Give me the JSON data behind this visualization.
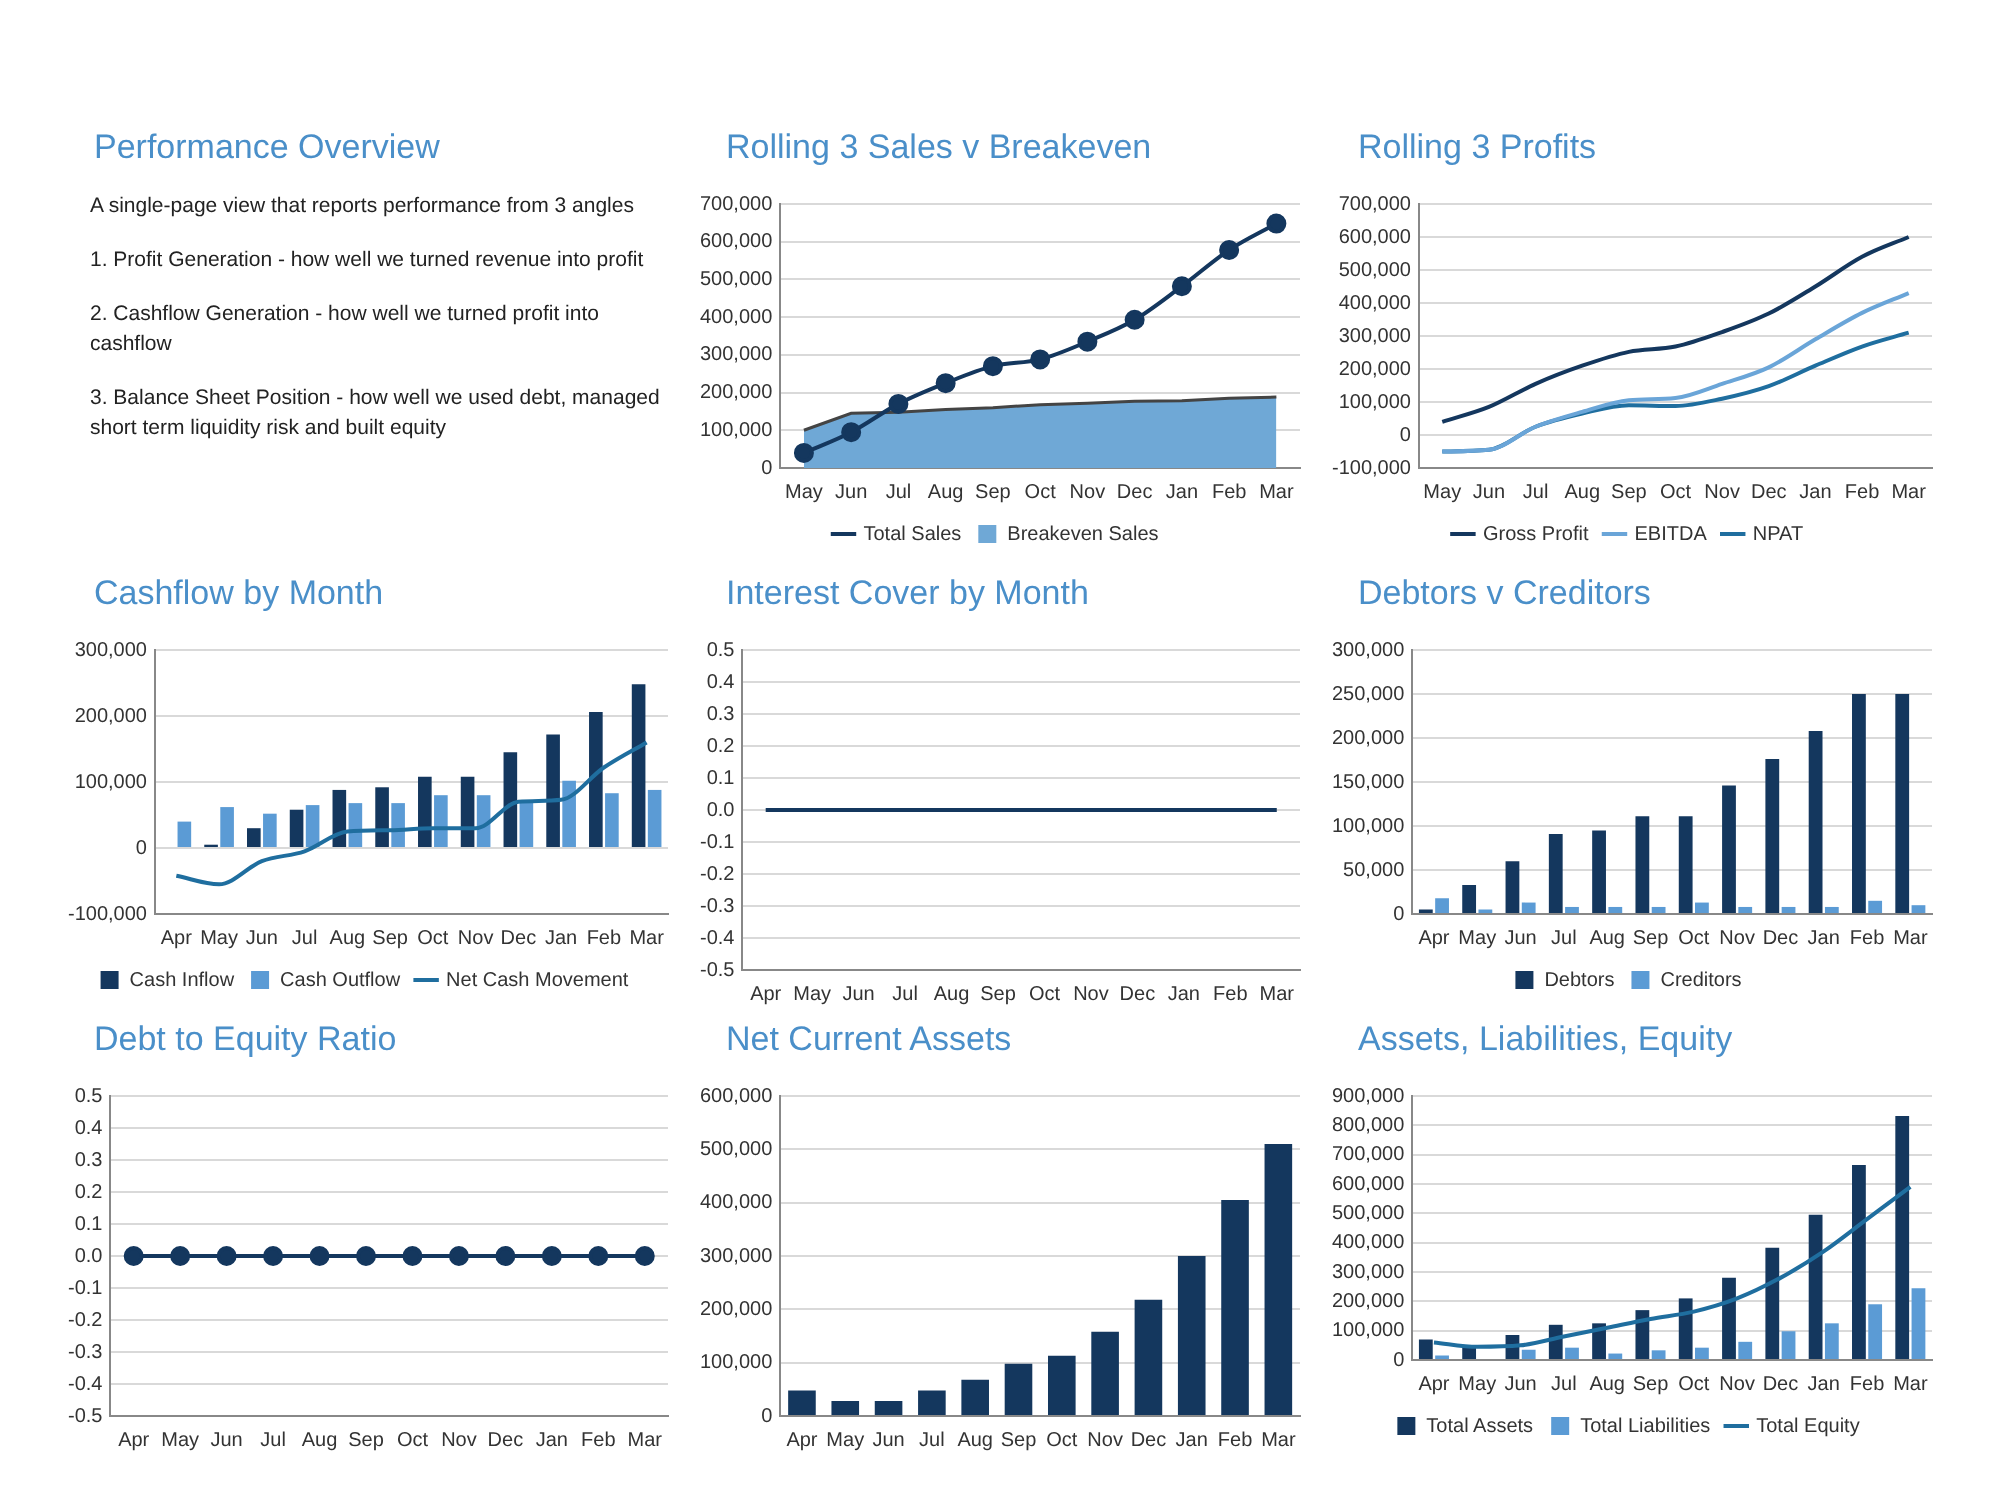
{
  "chart_data": [
    {
      "type": "other",
      "title": "Performance Overview",
      "annotations": [
        "A single-page view that reports performance from 3 angles",
        "1. Profit Generation - how well we turned revenue into profit",
        "2. Cashflow Generation - how well we turned profit into cashflow",
        "3. Balance Sheet Position - how well we used debt, managed short term liquidity risk and built equity"
      ]
    },
    {
      "type": "line",
      "title": "Rolling 3 Sales v Breakeven",
      "categories": [
        "May",
        "Jun",
        "Jul",
        "Aug",
        "Sep",
        "Oct",
        "Nov",
        "Dec",
        "Jan",
        "Feb",
        "Mar"
      ],
      "series": [
        {
          "name": "Total Sales",
          "type": "line",
          "color": "#14375e",
          "marker": "circle",
          "values": [
            40000,
            95000,
            170000,
            225000,
            270000,
            288000,
            335000,
            393000,
            482000,
            578000,
            648000
          ]
        },
        {
          "name": "Breakeven Sales",
          "type": "area",
          "color": "#6fa8d6",
          "values": [
            100000,
            145000,
            148000,
            155000,
            160000,
            168000,
            172000,
            177000,
            178000,
            185000,
            188000
          ]
        }
      ],
      "ylim": [
        0,
        700000
      ],
      "yticks": [
        0,
        {
          "value": 100000,
          "label": "100,000"
        },
        {
          "value": 200000,
          "label": "200,000"
        },
        {
          "value": 300000,
          "label": "300,000"
        },
        {
          "value": 400000,
          "label": "400,000"
        },
        {
          "value": 500000,
          "label": "500,000"
        },
        {
          "value": 600000,
          "label": "600,000"
        },
        {
          "value": 700000,
          "label": "700,000"
        }
      ],
      "grid": "y",
      "legend": "bottom"
    },
    {
      "type": "line",
      "title": "Rolling 3 Profits",
      "categories": [
        "May",
        "Jun",
        "Jul",
        "Aug",
        "Sep",
        "Oct",
        "Nov",
        "Dec",
        "Jan",
        "Feb",
        "Mar"
      ],
      "series": [
        {
          "name": "Gross Profit",
          "color": "#14375e",
          "values": [
            40000,
            85000,
            155000,
            210000,
            252000,
            268000,
            312000,
            368000,
            450000,
            540000,
            600000
          ]
        },
        {
          "name": "EBITDA",
          "color": "#6aa5d8",
          "values": [
            -50000,
            -45000,
            25000,
            70000,
            105000,
            112000,
            155000,
            205000,
            290000,
            370000,
            430000
          ]
        },
        {
          "name": "NPAT",
          "color": "#1f6e9f",
          "values": [
            -50000,
            -45000,
            25000,
            65000,
            90000,
            88000,
            110000,
            148000,
            210000,
            268000,
            310000
          ]
        }
      ],
      "ylim": [
        -100000,
        700000
      ],
      "yticks": [
        {
          "value": -100000,
          "label": "-100,000"
        },
        0,
        {
          "value": 100000,
          "label": "100,000"
        },
        {
          "value": 200000,
          "label": "200,000"
        },
        {
          "value": 300000,
          "label": "300,000"
        },
        {
          "value": 400000,
          "label": "400,000"
        },
        {
          "value": 500000,
          "label": "500,000"
        },
        {
          "value": 600000,
          "label": "600,000"
        },
        {
          "value": 700000,
          "label": "700,000"
        }
      ],
      "grid": "y",
      "legend": "bottom"
    },
    {
      "type": "bar",
      "title": "Cashflow by Month",
      "categories": [
        "Apr",
        "May",
        "Jun",
        "Jul",
        "Aug",
        "Sep",
        "Oct",
        "Nov",
        "Dec",
        "Jan",
        "Feb",
        "Mar"
      ],
      "series": [
        {
          "name": "Cash Inflow",
          "type": "bar",
          "color": "#14375e",
          "values": [
            0,
            5000,
            30000,
            58000,
            88000,
            92000,
            108000,
            108000,
            145000,
            172000,
            206000,
            248000
          ]
        },
        {
          "name": "Cash Outflow",
          "type": "bar",
          "color": "#5b9bd5",
          "values": [
            40000,
            62000,
            52000,
            65000,
            68000,
            68000,
            80000,
            80000,
            70000,
            102000,
            83000,
            88000
          ]
        },
        {
          "name": "Net Cash Movement",
          "type": "line",
          "color": "#1f6e9f",
          "values": [
            -42000,
            -55000,
            -20000,
            -5000,
            25000,
            27000,
            30000,
            30000,
            70000,
            73000,
            122000,
            160000
          ]
        }
      ],
      "ylim": [
        -100000,
        300000
      ],
      "yticks": [
        {
          "value": -100000,
          "label": "-100,000"
        },
        0,
        {
          "value": 100000,
          "label": "100,000"
        },
        {
          "value": 200000,
          "label": "200,000"
        },
        {
          "value": 300000,
          "label": "300,000"
        }
      ],
      "grid": "y",
      "legend": "bottom"
    },
    {
      "type": "line",
      "title": "Interest Cover by Month",
      "categories": [
        "Apr",
        "May",
        "Jun",
        "Jul",
        "Aug",
        "Sep",
        "Oct",
        "Nov",
        "Dec",
        "Jan",
        "Feb",
        "Mar"
      ],
      "series": [
        {
          "color": "#14375e",
          "values": [
            0,
            0,
            0,
            0,
            0,
            0,
            0,
            0,
            0,
            0,
            0,
            0
          ]
        }
      ],
      "ylim": [
        -0.5,
        0.5
      ],
      "yticks": [
        -0.5,
        -0.4,
        -0.3,
        -0.2,
        -0.1,
        {
          "value": 0,
          "label": "0.0"
        },
        0.1,
        0.2,
        0.3,
        0.4,
        0.5
      ],
      "grid": "y"
    },
    {
      "type": "bar",
      "title": "Debtors v Creditors",
      "categories": [
        "Apr",
        "May",
        "Jun",
        "Jul",
        "Aug",
        "Sep",
        "Oct",
        "Nov",
        "Dec",
        "Jan",
        "Feb",
        "Mar"
      ],
      "series": [
        {
          "name": "Debtors",
          "color": "#14375e",
          "values": [
            5000,
            33000,
            60000,
            91000,
            95000,
            111000,
            111000,
            146000,
            176000,
            208000,
            250000,
            250000
          ]
        },
        {
          "name": "Creditors",
          "color": "#5b9bd5",
          "values": [
            18000,
            5000,
            13000,
            8000,
            8000,
            8000,
            13000,
            8000,
            8000,
            8000,
            15000,
            10000
          ]
        }
      ],
      "ylim": [
        0,
        300000
      ],
      "yticks": [
        0,
        {
          "value": 50000,
          "label": "50,000"
        },
        {
          "value": 100000,
          "label": "100,000"
        },
        {
          "value": 150000,
          "label": "150,000"
        },
        {
          "value": 200000,
          "label": "200,000"
        },
        {
          "value": 250000,
          "label": "250,000"
        },
        {
          "value": 300000,
          "label": "300,000"
        }
      ],
      "grid": "y",
      "legend": "bottom"
    },
    {
      "type": "line",
      "title": "Debt to Equity Ratio",
      "categories": [
        "Apr",
        "May",
        "Jun",
        "Jul",
        "Aug",
        "Sep",
        "Oct",
        "Nov",
        "Dec",
        "Jan",
        "Feb",
        "Mar"
      ],
      "series": [
        {
          "color": "#14375e",
          "values": [
            0,
            0,
            0,
            0,
            0,
            0,
            0,
            0,
            0,
            0,
            0,
            0
          ]
        }
      ],
      "marker": "circle",
      "ylim": [
        -0.5,
        0.5
      ],
      "yticks": [
        -0.5,
        -0.4,
        -0.3,
        -0.2,
        -0.1,
        {
          "value": 0,
          "label": "0.0"
        },
        0.1,
        0.2,
        0.3,
        0.4,
        0.5
      ],
      "grid": "y"
    },
    {
      "type": "bar",
      "title": "Net Current Assets",
      "categories": [
        "Apr",
        "May",
        "Jun",
        "Jul",
        "Aug",
        "Sep",
        "Oct",
        "Nov",
        "Dec",
        "Jan",
        "Feb",
        "Mar"
      ],
      "series": [
        {
          "color": "#14375e",
          "values": [
            48000,
            28000,
            28000,
            48000,
            68000,
            98000,
            113000,
            158000,
            218000,
            300000,
            405000,
            510000
          ]
        }
      ],
      "ylim": [
        0,
        600000
      ],
      "yticks": [
        0,
        {
          "value": 100000,
          "label": "100,000"
        },
        {
          "value": 200000,
          "label": "200,000"
        },
        {
          "value": 300000,
          "label": "300,000"
        },
        {
          "value": 400000,
          "label": "400,000"
        },
        {
          "value": 500000,
          "label": "500,000"
        },
        {
          "value": 600000,
          "label": "600,000"
        }
      ],
      "grid": "y"
    },
    {
      "type": "bar",
      "title": "Assets, Liabilities, Equity",
      "categories": [
        "Apr",
        "May",
        "Jun",
        "Jul",
        "Aug",
        "Sep",
        "Oct",
        "Nov",
        "Dec",
        "Jan",
        "Feb",
        "Mar"
      ],
      "series": [
        {
          "name": "Total Assets",
          "type": "bar",
          "color": "#14375e",
          "values": [
            70000,
            50000,
            85000,
            120000,
            125000,
            170000,
            210000,
            280000,
            383000,
            495000,
            665000,
            832000
          ]
        },
        {
          "name": "Total Liabilities",
          "type": "bar",
          "color": "#5b9bd5",
          "values": [
            15000,
            3000,
            35000,
            42000,
            22000,
            33000,
            42000,
            62000,
            98000,
            125000,
            190000,
            245000
          ]
        },
        {
          "name": "Total Equity",
          "type": "line",
          "color": "#1f6e9f",
          "values": [
            60000,
            45000,
            50000,
            80000,
            110000,
            140000,
            165000,
            210000,
            280000,
            370000,
            480000,
            590000
          ]
        }
      ],
      "ylim": [
        0,
        900000
      ],
      "yticks": [
        0,
        {
          "value": 100000,
          "label": "100,000"
        },
        {
          "value": 200000,
          "label": "200,000"
        },
        {
          "value": 300000,
          "label": "300,000"
        },
        {
          "value": 400000,
          "label": "400,000"
        },
        {
          "value": 500000,
          "label": "500,000"
        },
        {
          "value": 600000,
          "label": "600,000"
        },
        {
          "value": 700000,
          "label": "700,000"
        },
        {
          "value": 800000,
          "label": "800,000"
        },
        {
          "value": 900000,
          "label": "900,000"
        }
      ],
      "grid": "y",
      "legend": "bottom"
    }
  ]
}
